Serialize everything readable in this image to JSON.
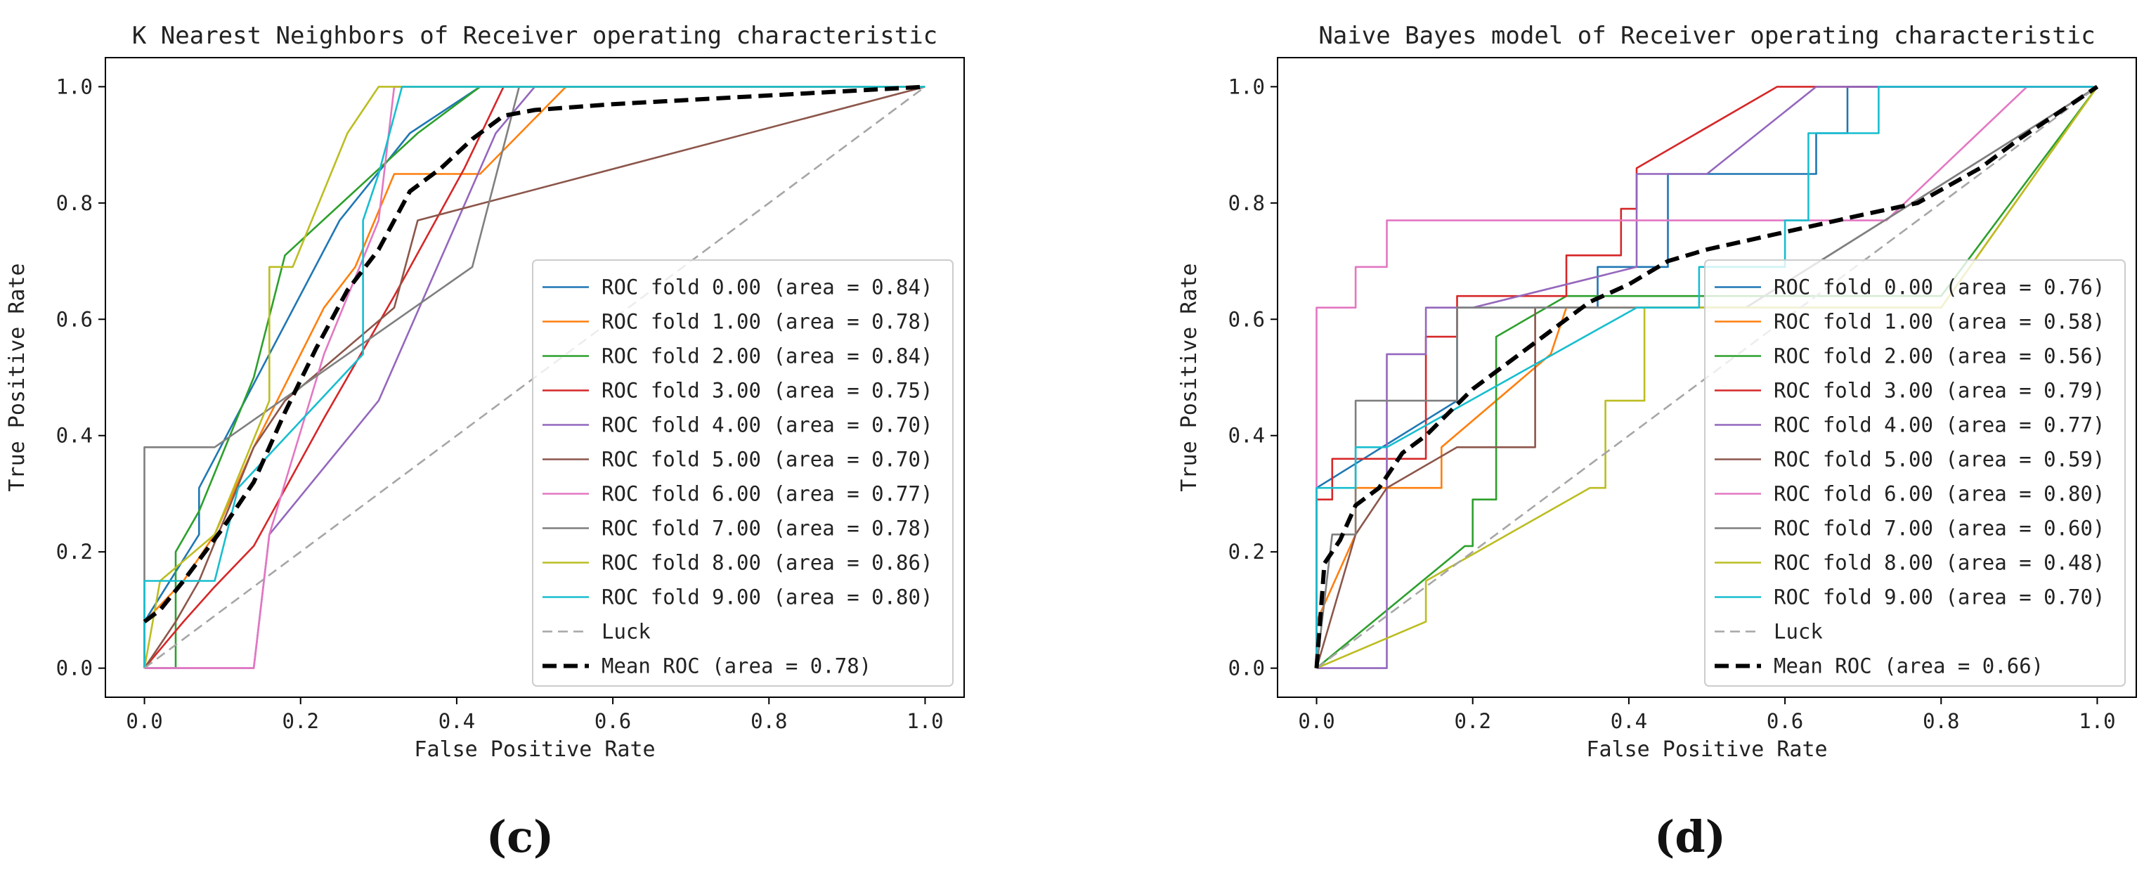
{
  "chart_data": [
    {
      "type": "line",
      "title": "K Nearest Neighbors of Receiver operating characteristic",
      "xlabel": "False Positive Rate",
      "ylabel": "True Positive Rate",
      "xlim": [
        -0.05,
        1.05
      ],
      "ylim": [
        -0.05,
        1.05
      ],
      "xticks": [
        0.0,
        0.2,
        0.4,
        0.6,
        0.8,
        1.0
      ],
      "yticks": [
        0.0,
        0.2,
        0.4,
        0.6,
        0.8,
        1.0
      ],
      "xtick_labels": [
        "0.0",
        "0.2",
        "0.4",
        "0.6",
        "0.8",
        "1.0"
      ],
      "ytick_labels": [
        "0.0",
        "0.2",
        "0.4",
        "0.6",
        "0.8",
        "1.0"
      ],
      "legend_position": "lower-right",
      "panel_label": "(c)",
      "series": [
        {
          "name": "ROC fold 0.00 (area = 0.84)",
          "color": "#1f77b4",
          "x": [
            0,
            0,
            0.07,
            0.07,
            0.25,
            0.34,
            0.43,
            0.47,
            1.0
          ],
          "y": [
            0,
            0.08,
            0.23,
            0.31,
            0.77,
            0.92,
            1.0,
            1.0,
            1.0
          ]
        },
        {
          "name": "ROC fold 1.00 (area = 0.78)",
          "color": "#ff7f0e",
          "x": [
            0,
            0,
            0.05,
            0.09,
            0.14,
            0.23,
            0.27,
            0.32,
            0.43,
            0.54,
            1.0
          ],
          "y": [
            0,
            0.08,
            0.15,
            0.23,
            0.38,
            0.62,
            0.69,
            0.85,
            0.85,
            1.0,
            1.0
          ]
        },
        {
          "name": "ROC fold 2.00 (area = 0.84)",
          "color": "#2ca02c",
          "x": [
            0,
            0.04,
            0.04,
            0.07,
            0.14,
            0.18,
            0.35,
            0.43,
            0.47,
            1.0
          ],
          "y": [
            0,
            0,
            0.2,
            0.27,
            0.5,
            0.71,
            0.92,
            1.0,
            1.0,
            1.0
          ]
        },
        {
          "name": "ROC fold 3.00 (area = 0.75)",
          "color": "#d62728",
          "x": [
            0,
            0.05,
            0.09,
            0.14,
            0.23,
            0.32,
            0.41,
            0.46,
            1.0
          ],
          "y": [
            0,
            0.08,
            0.14,
            0.21,
            0.43,
            0.64,
            0.86,
            1.0,
            1.0
          ]
        },
        {
          "name": "ROC fold 4.00 (area = 0.70)",
          "color": "#9467bd",
          "x": [
            0,
            0.14,
            0.16,
            0.3,
            0.45,
            0.5,
            1.0
          ],
          "y": [
            0,
            0,
            0.23,
            0.46,
            0.92,
            1.0,
            1.0
          ]
        },
        {
          "name": "ROC fold 5.00 (area = 0.70)",
          "color": "#8c564b",
          "x": [
            0,
            0.04,
            0.07,
            0.14,
            0.18,
            0.32,
            0.35,
            1.0
          ],
          "y": [
            0,
            0.08,
            0.15,
            0.38,
            0.46,
            0.62,
            0.77,
            1.0
          ]
        },
        {
          "name": "ROC fold 6.00 (area = 0.77)",
          "color": "#e377c2",
          "x": [
            0,
            0.14,
            0.16,
            0.23,
            0.3,
            0.32,
            1.0
          ],
          "y": [
            0,
            0,
            0.23,
            0.54,
            0.77,
            1.0,
            1.0
          ]
        },
        {
          "name": "ROC fold 7.00 (area = 0.78)",
          "color": "#7f7f7f",
          "x": [
            0,
            0,
            0.09,
            0.42,
            0.48,
            1.0
          ],
          "y": [
            0,
            0.38,
            0.38,
            0.69,
            1.0,
            1.0
          ]
        },
        {
          "name": "ROC fold 8.00 (area = 0.86)",
          "color": "#bcbd22",
          "x": [
            0,
            0.02,
            0.09,
            0.16,
            0.16,
            0.19,
            0.26,
            0.3,
            1.0
          ],
          "y": [
            0,
            0.15,
            0.23,
            0.46,
            0.69,
            0.69,
            0.92,
            1.0,
            1.0
          ]
        },
        {
          "name": "ROC fold 9.00 (area = 0.80)",
          "color": "#17becf",
          "x": [
            0,
            0,
            0.09,
            0.12,
            0.28,
            0.28,
            0.3,
            0.33,
            1.0
          ],
          "y": [
            0,
            0.15,
            0.15,
            0.31,
            0.54,
            0.77,
            0.85,
            1.0,
            1.0
          ]
        },
        {
          "name": "Luck",
          "color": "#a6a6a6",
          "dash": "dashed",
          "x": [
            0,
            1.0
          ],
          "y": [
            0,
            1.0
          ]
        },
        {
          "name": "Mean ROC (area = 0.78)",
          "color": "#000000",
          "dash": "dashed",
          "bold": true,
          "x": [
            0,
            0.02,
            0.05,
            0.1,
            0.14,
            0.18,
            0.22,
            0.26,
            0.3,
            0.34,
            0.38,
            0.42,
            0.46,
            0.5,
            0.6,
            0.8,
            1.0
          ],
          "y": [
            0.08,
            0.1,
            0.15,
            0.24,
            0.32,
            0.44,
            0.55,
            0.65,
            0.72,
            0.82,
            0.86,
            0.91,
            0.95,
            0.96,
            0.97,
            0.985,
            1.0
          ]
        }
      ]
    },
    {
      "type": "line",
      "title": "Naive Bayes model of Receiver operating characteristic",
      "xlabel": "False Positive Rate",
      "ylabel": "True Positive Rate",
      "xlim": [
        -0.05,
        1.05
      ],
      "ylim": [
        -0.05,
        1.05
      ],
      "xticks": [
        0.0,
        0.2,
        0.4,
        0.6,
        0.8,
        1.0
      ],
      "yticks": [
        0.0,
        0.2,
        0.4,
        0.6,
        0.8,
        1.0
      ],
      "xtick_labels": [
        "0.0",
        "0.2",
        "0.4",
        "0.6",
        "0.8",
        "1.0"
      ],
      "ytick_labels": [
        "0.0",
        "0.2",
        "0.4",
        "0.6",
        "0.8",
        "1.0"
      ],
      "legend_position": "lower-right",
      "panel_label": "(d)",
      "series": [
        {
          "name": "ROC fold 0.00 (area = 0.76)",
          "color": "#1f77b4",
          "x": [
            0,
            0,
            0.18,
            0.18,
            0.36,
            0.36,
            0.45,
            0.45,
            0.64,
            0.64,
            0.68,
            0.68,
            1.0
          ],
          "y": [
            0,
            0.31,
            0.46,
            0.62,
            0.62,
            0.69,
            0.69,
            0.85,
            0.85,
            0.92,
            0.92,
            1.0,
            1.0
          ]
        },
        {
          "name": "ROC fold 1.00 (area = 0.58)",
          "color": "#ff7f0e",
          "x": [
            0,
            0,
            0.05,
            0.05,
            0.09,
            0.16,
            0.16,
            0.3,
            0.32,
            0.8,
            1.0
          ],
          "y": [
            0,
            0.08,
            0.23,
            0.31,
            0.31,
            0.31,
            0.38,
            0.54,
            0.62,
            0.62,
            1.0
          ]
        },
        {
          "name": "ROC fold 2.00 (area = 0.56)",
          "color": "#2ca02c",
          "x": [
            0,
            0.19,
            0.2,
            0.2,
            0.23,
            0.23,
            0.32,
            0.8,
            1.0
          ],
          "y": [
            0,
            0.21,
            0.21,
            0.29,
            0.29,
            0.57,
            0.64,
            0.64,
            1.0
          ]
        },
        {
          "name": "ROC fold 3.00 (area = 0.79)",
          "color": "#d62728",
          "x": [
            0,
            0,
            0.02,
            0.02,
            0.14,
            0.14,
            0.18,
            0.18,
            0.32,
            0.32,
            0.39,
            0.39,
            0.41,
            0.41,
            0.59,
            1.0
          ],
          "y": [
            0,
            0.29,
            0.29,
            0.36,
            0.36,
            0.57,
            0.57,
            0.64,
            0.64,
            0.71,
            0.71,
            0.79,
            0.79,
            0.86,
            1.0,
            1.0
          ]
        },
        {
          "name": "ROC fold 4.00 (area = 0.77)",
          "color": "#9467bd",
          "x": [
            0,
            0.09,
            0.09,
            0.14,
            0.14,
            0.2,
            0.41,
            0.41,
            0.5,
            0.64,
            1.0
          ],
          "y": [
            0,
            0,
            0.54,
            0.54,
            0.62,
            0.62,
            0.69,
            0.85,
            0.85,
            1.0,
            1.0
          ]
        },
        {
          "name": "ROC fold 5.00 (area = 0.59)",
          "color": "#8c564b",
          "x": [
            0,
            0.05,
            0.09,
            0.18,
            0.28,
            0.28,
            0.55,
            1.0
          ],
          "y": [
            0,
            0.23,
            0.31,
            0.38,
            0.38,
            0.62,
            0.62,
            1.0
          ]
        },
        {
          "name": "ROC fold 6.00 (area = 0.80)",
          "color": "#e377c2",
          "x": [
            0,
            0,
            0.05,
            0.05,
            0.09,
            0.09,
            0.73,
            0.91,
            1.0
          ],
          "y": [
            0,
            0.62,
            0.62,
            0.69,
            0.69,
            0.77,
            0.77,
            1.0,
            1.0
          ]
        },
        {
          "name": "ROC fold 7.00 (area = 0.60)",
          "color": "#7f7f7f",
          "x": [
            0,
            0.02,
            0.02,
            0.05,
            0.05,
            0.18,
            0.18,
            0.55,
            1.0
          ],
          "y": [
            0,
            0.23,
            0.23,
            0.23,
            0.46,
            0.46,
            0.62,
            0.62,
            1.0
          ]
        },
        {
          "name": "ROC fold 8.00 (area = 0.48)",
          "color": "#bcbd22",
          "x": [
            0,
            0.14,
            0.14,
            0.35,
            0.37,
            0.37,
            0.42,
            0.42,
            0.8,
            1.0
          ],
          "y": [
            0,
            0.08,
            0.15,
            0.31,
            0.31,
            0.46,
            0.46,
            0.62,
            0.62,
            1.0
          ]
        },
        {
          "name": "ROC fold 9.00 (area = 0.70)",
          "color": "#17becf",
          "x": [
            0,
            0,
            0.05,
            0.05,
            0.09,
            0.41,
            0.49,
            0.49,
            0.6,
            0.6,
            0.63,
            0.63,
            0.72,
            0.72,
            1.0
          ],
          "y": [
            0,
            0.31,
            0.31,
            0.38,
            0.38,
            0.62,
            0.62,
            0.69,
            0.69,
            0.77,
            0.77,
            0.92,
            0.92,
            1.0,
            1.0
          ]
        },
        {
          "name": "Luck",
          "color": "#a6a6a6",
          "dash": "dashed",
          "x": [
            0,
            1.0
          ],
          "y": [
            0,
            1.0
          ]
        },
        {
          "name": "Mean ROC (area = 0.66)",
          "color": "#000000",
          "dash": "dashed",
          "bold": true,
          "x": [
            0,
            0.01,
            0.03,
            0.05,
            0.08,
            0.11,
            0.14,
            0.17,
            0.2,
            0.25,
            0.3,
            0.35,
            0.4,
            0.45,
            0.5,
            0.6,
            0.7,
            0.77,
            0.85,
            0.9,
            1.0
          ],
          "y": [
            0,
            0.18,
            0.22,
            0.28,
            0.31,
            0.37,
            0.4,
            0.44,
            0.48,
            0.53,
            0.58,
            0.63,
            0.66,
            0.7,
            0.72,
            0.75,
            0.78,
            0.8,
            0.86,
            0.91,
            1.0
          ]
        }
      ]
    }
  ]
}
